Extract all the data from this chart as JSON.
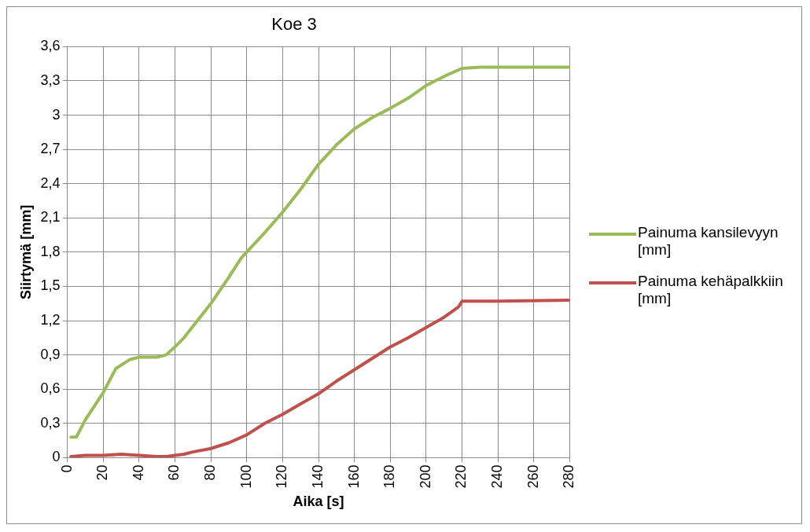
{
  "chart_data": {
    "type": "line",
    "title": "Koe 3",
    "xlabel": "Aika [s]",
    "ylabel": "Siirtymä [mm]",
    "xlim": [
      0,
      280
    ],
    "xticks": [
      0,
      20,
      40,
      60,
      80,
      100,
      120,
      140,
      160,
      180,
      200,
      220,
      240,
      260,
      280
    ],
    "ylim": [
      0,
      3.6
    ],
    "yticks": [
      0,
      {
        "value": 0.3,
        "label": "0,3"
      },
      {
        "value": 0.6,
        "label": "0,6"
      },
      {
        "value": 0.9,
        "label": "0,9"
      },
      {
        "value": 1.2,
        "label": "1,2"
      },
      {
        "value": 1.5,
        "label": "1,5"
      },
      {
        "value": 1.8,
        "label": "1,8"
      },
      {
        "value": 2.1,
        "label": "2,1"
      },
      {
        "value": 2.4,
        "label": "2,4"
      },
      {
        "value": 2.7,
        "label": "2,7"
      },
      3,
      {
        "value": 3.3,
        "label": "3,3"
      },
      {
        "value": 3.6,
        "label": "3,6"
      }
    ],
    "grid": true,
    "legend": "right",
    "marker": "none",
    "line_style": "solid",
    "series": [
      {
        "name": "Painuma kansilevyyn [mm]",
        "color": "#9bbb59",
        "x": [
          2,
          5,
          10,
          20,
          27,
          35,
          40,
          50,
          55,
          60,
          65,
          70,
          80,
          90,
          97,
          110,
          120,
          130,
          140,
          150,
          160,
          170,
          180,
          190,
          200,
          210,
          220,
          230,
          280
        ],
        "values": [
          0.18,
          0.18,
          0.33,
          0.57,
          0.78,
          0.86,
          0.88,
          0.88,
          0.9,
          0.97,
          1.05,
          1.15,
          1.35,
          1.58,
          1.75,
          1.97,
          2.15,
          2.35,
          2.57,
          2.74,
          2.88,
          2.98,
          3.06,
          3.15,
          3.26,
          3.34,
          3.41,
          3.42,
          3.42
        ]
      },
      {
        "name": "Painuma kehäpalkkiin [mm]",
        "color": "#c0504d",
        "x": [
          2,
          10,
          20,
          30,
          40,
          50,
          55,
          60,
          65,
          70,
          80,
          90,
          100,
          110,
          120,
          130,
          140,
          150,
          160,
          170,
          180,
          190,
          200,
          210,
          218,
          220,
          240,
          280
        ],
        "values": [
          0.01,
          0.02,
          0.02,
          0.03,
          0.02,
          0.01,
          0.01,
          0.02,
          0.03,
          0.05,
          0.08,
          0.13,
          0.2,
          0.3,
          0.38,
          0.47,
          0.56,
          0.67,
          0.77,
          0.87,
          0.97,
          1.05,
          1.14,
          1.23,
          1.32,
          1.37,
          1.37,
          1.38
        ]
      }
    ]
  }
}
